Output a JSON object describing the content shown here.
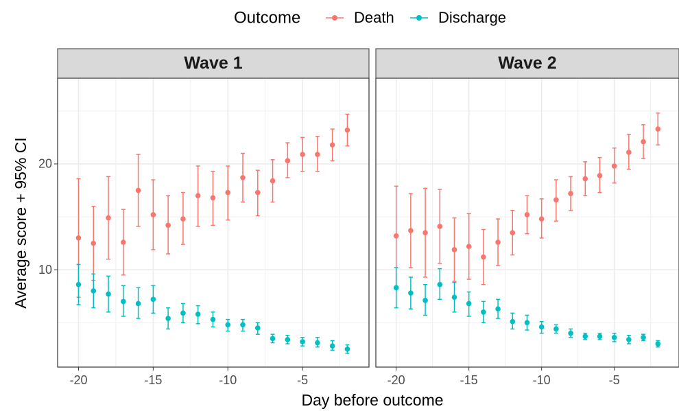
{
  "legend_title": "Outcome",
  "x_label": "Day before outcome",
  "y_label": "Average score + 95% CI",
  "chart_data": [
    {
      "type": "errorbar",
      "title": "Wave 1",
      "x": [
        -20,
        -19,
        -18,
        -17,
        -16,
        -15,
        -14,
        -13,
        -12,
        -11,
        -10,
        -9,
        -8,
        -7,
        -6,
        -5,
        -4,
        -3,
        -2
      ],
      "xlim": [
        -21.4,
        -0.55
      ],
      "xticks": [
        -20,
        -15,
        -10,
        -5
      ],
      "x_minor_grid": [
        -17.5,
        -12.5,
        -7.5,
        -2.5
      ],
      "ylim": [
        0.8,
        28.1
      ],
      "yticks": [
        10,
        20
      ],
      "y_minor_grid": [
        5,
        15,
        25
      ],
      "grid": true,
      "series": [
        {
          "name": "Death",
          "color": "#f8766d",
          "values": [
            13.0,
            12.5,
            14.9,
            12.6,
            17.5,
            15.2,
            14.2,
            14.8,
            17.0,
            16.8,
            17.3,
            18.7,
            17.3,
            18.4,
            20.3,
            20.9,
            20.9,
            21.8,
            23.2
          ],
          "ci_high": [
            18.6,
            16.0,
            18.8,
            15.7,
            20.9,
            18.5,
            17.0,
            17.3,
            19.8,
            19.3,
            19.8,
            21.0,
            19.4,
            20.4,
            22.0,
            22.5,
            22.6,
            23.3,
            24.7
          ],
          "ci_low": [
            7.4,
            9.0,
            11.0,
            9.5,
            14.1,
            11.9,
            11.5,
            12.4,
            14.1,
            14.2,
            14.7,
            16.4,
            15.1,
            16.4,
            18.7,
            19.3,
            19.3,
            20.3,
            21.7
          ]
        },
        {
          "name": "Discharge",
          "color": "#00bfc4",
          "values": [
            8.6,
            8.0,
            7.7,
            7.0,
            6.8,
            7.2,
            5.4,
            5.9,
            5.8,
            5.3,
            4.8,
            4.8,
            4.5,
            3.5,
            3.4,
            3.2,
            3.1,
            2.8,
            2.5
          ],
          "ci_high": [
            10.5,
            9.6,
            9.4,
            8.5,
            8.3,
            8.5,
            6.4,
            6.8,
            6.6,
            6.0,
            5.3,
            5.3,
            5.0,
            3.9,
            3.8,
            3.6,
            3.6,
            3.3,
            2.9
          ],
          "ci_low": [
            6.7,
            6.4,
            6.0,
            5.6,
            5.4,
            5.9,
            4.4,
            5.0,
            4.9,
            4.6,
            4.2,
            4.2,
            3.9,
            3.1,
            3.0,
            2.8,
            2.7,
            2.4,
            2.1
          ]
        }
      ]
    },
    {
      "type": "errorbar",
      "title": "Wave 2",
      "x": [
        -20,
        -19,
        -18,
        -17,
        -16,
        -15,
        -14,
        -13,
        -12,
        -11,
        -10,
        -9,
        -8,
        -7,
        -6,
        -5,
        -4,
        -3,
        -2
      ],
      "xlim": [
        -21.4,
        -0.55
      ],
      "xticks": [
        -20,
        -15,
        -10,
        -5
      ],
      "x_minor_grid": [
        -17.5,
        -12.5,
        -7.5,
        -2.5
      ],
      "ylim": [
        0.8,
        28.1
      ],
      "yticks": [
        10,
        20
      ],
      "y_minor_grid": [
        5,
        15,
        25
      ],
      "grid": true,
      "series": [
        {
          "name": "Death",
          "color": "#f8766d",
          "values": [
            13.2,
            13.7,
            13.5,
            14.1,
            11.9,
            12.2,
            11.2,
            12.6,
            13.5,
            15.2,
            14.8,
            16.6,
            17.2,
            18.6,
            18.9,
            19.8,
            21.1,
            22.1,
            23.3
          ],
          "ci_high": [
            17.9,
            17.2,
            17.7,
            17.6,
            14.9,
            15.3,
            13.8,
            14.8,
            15.6,
            17.0,
            16.7,
            18.5,
            18.8,
            20.2,
            20.6,
            21.5,
            22.8,
            23.7,
            24.8
          ],
          "ci_low": [
            8.4,
            10.2,
            9.3,
            10.6,
            8.9,
            9.1,
            8.6,
            10.4,
            11.4,
            13.4,
            13.0,
            14.6,
            15.6,
            17.0,
            17.3,
            18.2,
            19.5,
            20.5,
            21.8
          ]
        },
        {
          "name": "Discharge",
          "color": "#00bfc4",
          "values": [
            8.3,
            7.8,
            7.1,
            8.6,
            7.4,
            6.8,
            6.0,
            6.3,
            5.1,
            5.0,
            4.6,
            4.4,
            4.0,
            3.7,
            3.7,
            3.6,
            3.4,
            3.6,
            3.0
          ],
          "ci_high": [
            10.2,
            9.3,
            8.6,
            10.1,
            8.8,
            7.9,
            7.0,
            7.2,
            5.9,
            5.7,
            5.1,
            4.8,
            4.4,
            4.0,
            4.0,
            4.0,
            3.8,
            3.9,
            3.3
          ],
          "ci_low": [
            6.4,
            6.3,
            5.7,
            7.2,
            6.0,
            5.6,
            5.0,
            5.4,
            4.4,
            4.3,
            4.0,
            4.0,
            3.6,
            3.4,
            3.4,
            3.2,
            3.0,
            3.3,
            2.7
          ]
        }
      ]
    }
  ]
}
